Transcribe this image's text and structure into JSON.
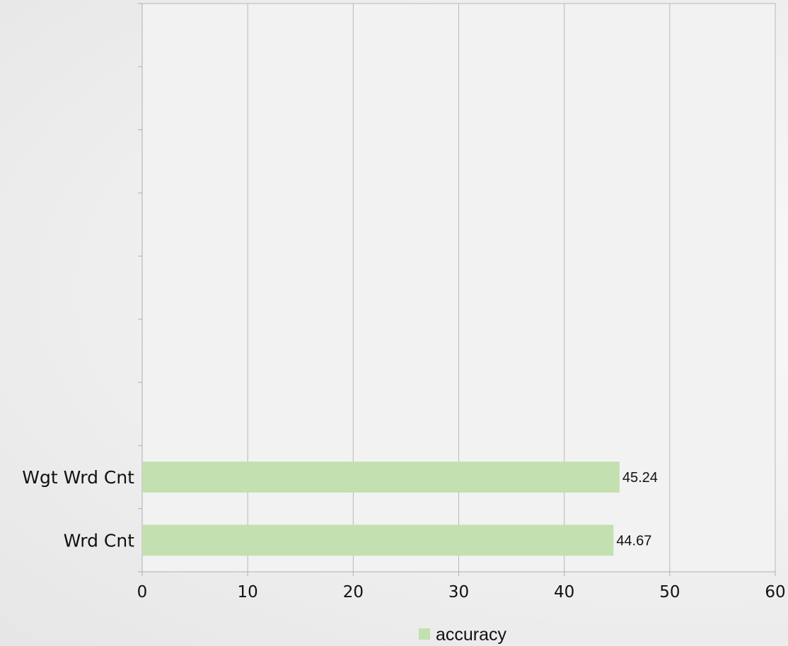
{
  "chart_data": {
    "type": "bar",
    "orientation": "horizontal",
    "categories": [
      "Wrd Cnt",
      "Wgt Wrd Cnt"
    ],
    "series": [
      {
        "name": "accuracy",
        "values": [
          44.67,
          45.24
        ],
        "color": "#c3e0b0"
      }
    ],
    "data_labels": [
      "44.67",
      "45.24"
    ],
    "xlim": [
      0,
      60
    ],
    "x_ticks": [
      0,
      10,
      20,
      30,
      40,
      50,
      60
    ],
    "x_tick_labels": [
      "0",
      "10",
      "20",
      "30",
      "40",
      "50",
      "60"
    ],
    "category_slots": 9,
    "grid": "vertical",
    "legend": {
      "position": "bottom",
      "entries": [
        "accuracy"
      ]
    },
    "colors": {
      "bar": "#c3e0b0",
      "grid": "#b8b8b8",
      "axis": "#b0b0b0",
      "plot_background": "#f2f2f2"
    }
  }
}
